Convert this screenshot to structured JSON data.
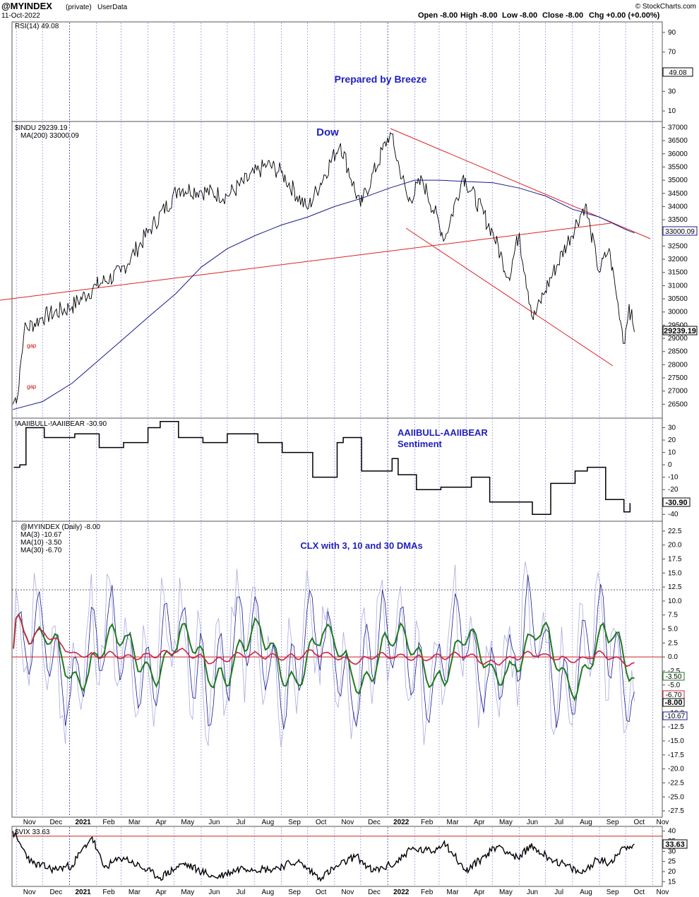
{
  "header": {
    "symbol": "@MYINDEX",
    "access": "(private)",
    "source": "UserData",
    "date": "11-Oct-2022",
    "open": "Open -8.00",
    "high": "High -8.00",
    "low": "Low -8.00",
    "close": "Close -8.00",
    "chg": "Chg +0.00 (+0.00%)",
    "brand": "© StockCharts.com"
  },
  "months": [
    "Nov",
    "Dec",
    "2021",
    "Feb",
    "Mar",
    "Apr",
    "May",
    "Jun",
    "Jul",
    "Aug",
    "Sep",
    "Oct",
    "Nov",
    "Dec",
    "2022",
    "Feb",
    "Mar",
    "Apr",
    "May",
    "Jun",
    "Jul",
    "Aug",
    "Sep",
    "Oct",
    "Nov"
  ],
  "chart_data": [
    {
      "type": "line",
      "panel": "rsi",
      "legend": "RSI(14) 49.08",
      "annotation": "Prepared by Breeze",
      "last_value_label": "49.08",
      "ylim": [
        0,
        100
      ],
      "yticks": [
        10,
        30,
        50,
        70,
        90
      ],
      "values": [
        49.08
      ]
    },
    {
      "type": "line",
      "panel": "price",
      "series": [
        {
          "name": "$INDU 29239.19",
          "color": "#000000",
          "x": [
            "2020-10-28",
            "2020-11-03",
            "2020-11-10",
            "2020-12-01",
            "2021-01-04",
            "2021-02-01",
            "2021-03-01",
            "2021-04-01",
            "2021-05-07",
            "2021-06-01",
            "2021-07-01",
            "2021-08-16",
            "2021-09-01",
            "2021-10-01",
            "2021-11-08",
            "2021-12-01",
            "2022-01-04",
            "2022-01-25",
            "2022-02-10",
            "2022-03-08",
            "2022-03-29",
            "2022-05-02",
            "2022-05-20",
            "2022-06-01",
            "2022-06-17",
            "2022-07-01",
            "2022-08-16",
            "2022-09-01",
            "2022-09-12",
            "2022-09-30",
            "2022-10-05",
            "2022-10-11"
          ],
          "values": [
            26500,
            26900,
            29300,
            29800,
            30200,
            31000,
            31500,
            33000,
            34700,
            34600,
            34400,
            35600,
            35300,
            33900,
            36400,
            34000,
            36800,
            34200,
            35000,
            32800,
            35200,
            33000,
            31300,
            33000,
            29700,
            30800,
            34100,
            31500,
            32400,
            28800,
            30300,
            29239.19
          ]
        },
        {
          "name": "MA(200) 33000.09",
          "color": "#1a1a8f",
          "x": [
            "2020-10-28",
            "2020-12-01",
            "2021-01-04",
            "2021-02-01",
            "2021-03-01",
            "2021-04-01",
            "2021-05-03",
            "2021-06-01",
            "2021-07-01",
            "2021-08-02",
            "2021-09-01",
            "2021-10-01",
            "2021-11-01",
            "2021-12-01",
            "2022-01-03",
            "2022-02-01",
            "2022-03-01",
            "2022-04-01",
            "2022-05-02",
            "2022-06-01",
            "2022-07-01",
            "2022-08-01",
            "2022-09-01",
            "2022-10-03",
            "2022-10-11"
          ],
          "values": [
            26300,
            26600,
            27300,
            28100,
            28900,
            29800,
            30700,
            31700,
            32400,
            32900,
            33300,
            33600,
            34000,
            34300,
            34700,
            35000,
            35000,
            34950,
            34900,
            34700,
            34400,
            33900,
            33600,
            33100,
            33000.09
          ]
        }
      ],
      "legend": [
        "$INDU 29239.19",
        "MA(200) 33000.09"
      ],
      "annotation": "Dow",
      "gap_labels": [
        "gap",
        "gap"
      ],
      "last_value_labels": [
        "33000.09",
        "29239.19"
      ],
      "ylim": [
        26000,
        37200
      ],
      "yticks": [
        26500,
        27000,
        27500,
        28000,
        28500,
        29000,
        29500,
        30000,
        30500,
        31000,
        31500,
        32000,
        32500,
        33000,
        33500,
        34000,
        34500,
        35000,
        35500,
        36000,
        36500,
        37000
      ]
    },
    {
      "type": "line",
      "panel": "sentiment",
      "legend": "!AAIIBULL-!AAIIBEAR -30.90",
      "annotation": [
        "AAIIBULL-AAIIBEAR",
        "Sentiment"
      ],
      "last_value_label": "-30.90",
      "ylim": [
        -45,
        36
      ],
      "yticks": [
        -40,
        -30,
        -20,
        -10,
        0,
        10,
        20,
        30
      ],
      "x": [
        "2020-10-29",
        "2020-11-05",
        "2020-11-12",
        "2020-12-03",
        "2021-01-07",
        "2021-02-04",
        "2021-03-04",
        "2021-04-01",
        "2021-04-15",
        "2021-05-06",
        "2021-06-03",
        "2021-07-01",
        "2021-08-05",
        "2021-09-02",
        "2021-10-07",
        "2021-11-04",
        "2021-11-11",
        "2021-12-02",
        "2022-01-06",
        "2022-01-13",
        "2022-02-03",
        "2022-03-03",
        "2022-04-07",
        "2022-04-28",
        "2022-05-19",
        "2022-06-16",
        "2022-07-07",
        "2022-08-04",
        "2022-08-18",
        "2022-09-08",
        "2022-09-29",
        "2022-10-06"
      ],
      "values": [
        -2,
        0,
        30,
        22,
        25,
        14,
        18,
        30,
        35,
        22,
        18,
        25,
        18,
        10,
        -10,
        18,
        22,
        -5,
        5,
        -8,
        -20,
        -18,
        -10,
        -30,
        -30,
        -40,
        -15,
        -5,
        -2,
        -28,
        -38,
        -30.9
      ]
    },
    {
      "type": "line",
      "panel": "clx",
      "annotation": "CLX with 3, 10 and 30 DMAs",
      "legend": [
        "@MYINDEX (Daily) -8.00",
        "MA(3) -10.67",
        "MA(10) -3.50",
        "MA(30) -6.70"
      ],
      "series": [
        {
          "name": "@MYINDEX (Daily) -8.00",
          "color": "#aaaadd",
          "role": "raw"
        },
        {
          "name": "MA(3) -10.67",
          "color": "#1a1a8f",
          "role": "ma3"
        },
        {
          "name": "MA(10) -3.50",
          "color": "#1f7a1f",
          "role": "ma10"
        },
        {
          "name": "MA(30) -6.70",
          "color": "#cc2244",
          "role": "ma30"
        }
      ],
      "last_value_labels": [
        "-3.50",
        "-6.70",
        "-8.00",
        "-10.67"
      ],
      "ylim": [
        -28.5,
        24
      ],
      "yticks": [
        -27.5,
        -25,
        -22.5,
        -20,
        -17.5,
        -15,
        -12.5,
        -10,
        -7.5,
        -5,
        -2.5,
        0,
        2.5,
        5,
        7.5,
        10,
        12.5,
        15,
        17.5,
        20,
        22.5
      ]
    },
    {
      "type": "line",
      "panel": "vix",
      "legend": "$VIX 33.63",
      "last_value_label": "33.63",
      "ylim": [
        13,
        42
      ],
      "yticks": [
        15,
        20,
        25,
        30,
        35,
        40
      ],
      "x": [
        "2020-10-28",
        "2020-11-03",
        "2020-11-20",
        "2020-12-15",
        "2021-01-04",
        "2021-01-27",
        "2021-02-10",
        "2021-03-04",
        "2021-04-15",
        "2021-05-12",
        "2021-06-18",
        "2021-07-19",
        "2021-08-19",
        "2021-09-20",
        "2021-10-15",
        "2021-11-26",
        "2021-12-15",
        "2022-01-10",
        "2022-01-27",
        "2022-02-23",
        "2022-03-07",
        "2022-04-01",
        "2022-04-26",
        "2022-05-09",
        "2022-06-01",
        "2022-06-13",
        "2022-07-05",
        "2022-08-12",
        "2022-08-29",
        "2022-09-12",
        "2022-09-29",
        "2022-10-11"
      ],
      "values": [
        40,
        35,
        24,
        21,
        23,
        37,
        22,
        27,
        17,
        24,
        17,
        22,
        21,
        25,
        17,
        28,
        20,
        24,
        31,
        30,
        35,
        20,
        29,
        33,
        26,
        33,
        27,
        19,
        26,
        24,
        32,
        33.63
      ]
    }
  ]
}
